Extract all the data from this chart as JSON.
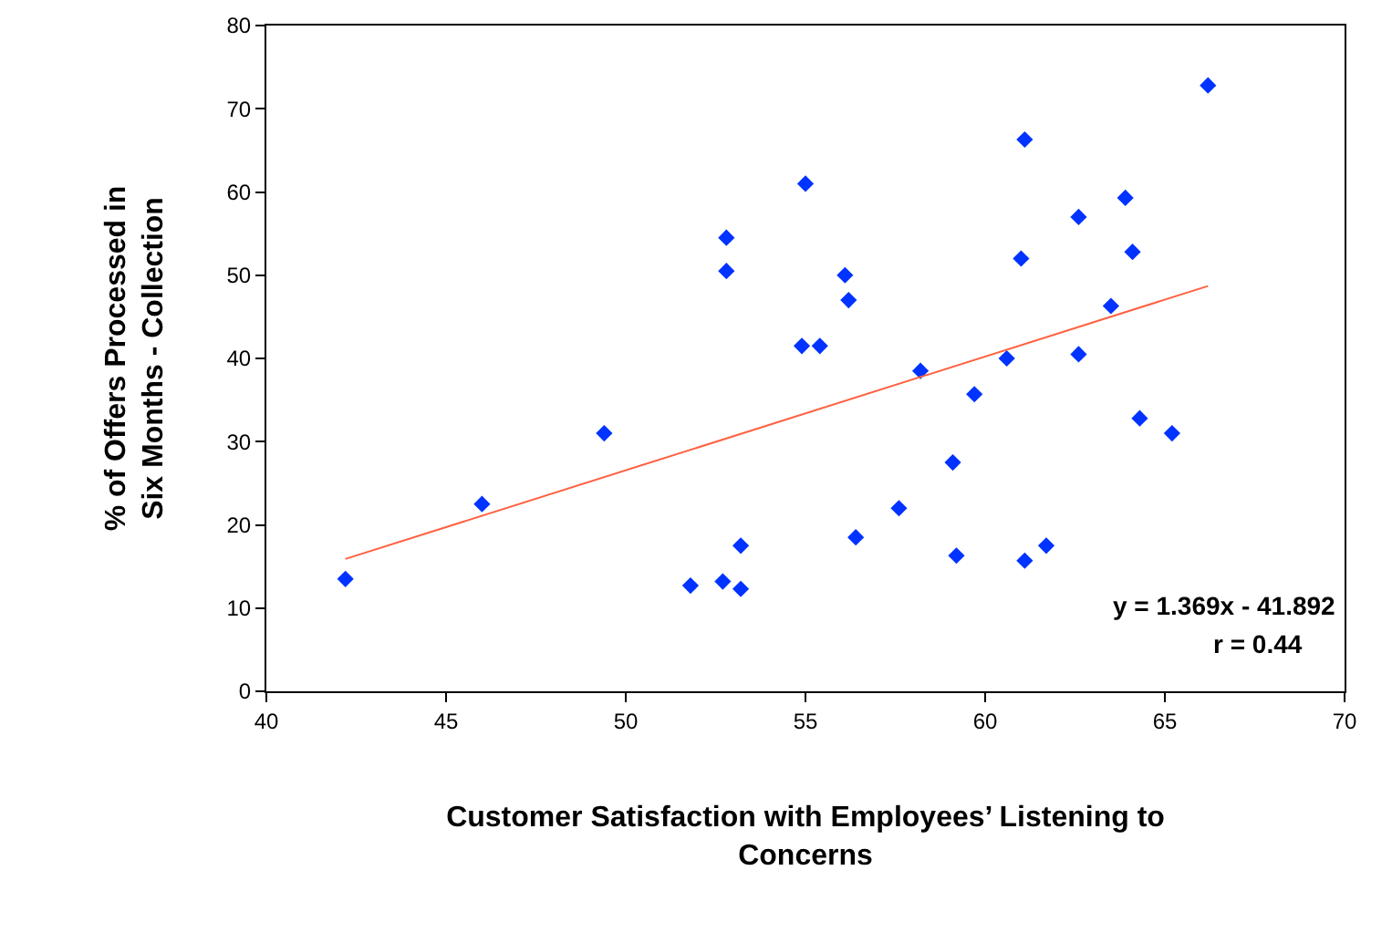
{
  "chart_data": {
    "type": "scatter",
    "xlabel": "Customer Satisfaction with Employees’ Listening to\nConcerns",
    "ylabel": "% of Offers Processed in\nSix Months - Collection",
    "x": [
      42.2,
      46,
      49.4,
      51.8,
      52.7,
      52.8,
      52.8,
      53.2,
      53.2,
      55,
      54.9,
      55.4,
      56.1,
      56.2,
      56.4,
      57.6,
      58.2,
      59.1,
      59.2,
      59.7,
      60.6,
      61,
      61.1,
      61.1,
      61.7,
      62.6,
      62.6,
      63.5,
      63.9,
      64.1,
      64.3,
      65.2,
      66.2
    ],
    "series": [
      {
        "color": "#0033ff",
        "marker": "diamond",
        "values": [
          13.5,
          22.5,
          31,
          12.7,
          13.2,
          54.5,
          50.5,
          17.5,
          12.3,
          61,
          41.5,
          41.5,
          50,
          47,
          18.5,
          22,
          38.5,
          27.5,
          16.3,
          35.7,
          40,
          52,
          66.3,
          15.7,
          17.5,
          57,
          40.5,
          46.3,
          59.3,
          52.8,
          32.8,
          31,
          72.8
        ]
      },
      {
        "type": "line",
        "color": "#ff6040",
        "marker": "none",
        "line_style": "solid",
        "x": [
          42.2,
          66.2
        ],
        "values": [
          15.9,
          48.7
        ]
      }
    ],
    "annotations": [
      "y = 1.369x - 41.892",
      "r = 0.44"
    ],
    "xlim": [
      40,
      70
    ],
    "xticks": [
      40,
      45,
      50,
      55,
      60,
      65,
      70
    ],
    "ylim": [
      0,
      80
    ],
    "yticks": [
      0,
      10,
      20,
      30,
      40,
      50,
      60,
      70,
      80
    ],
    "grid": false
  }
}
